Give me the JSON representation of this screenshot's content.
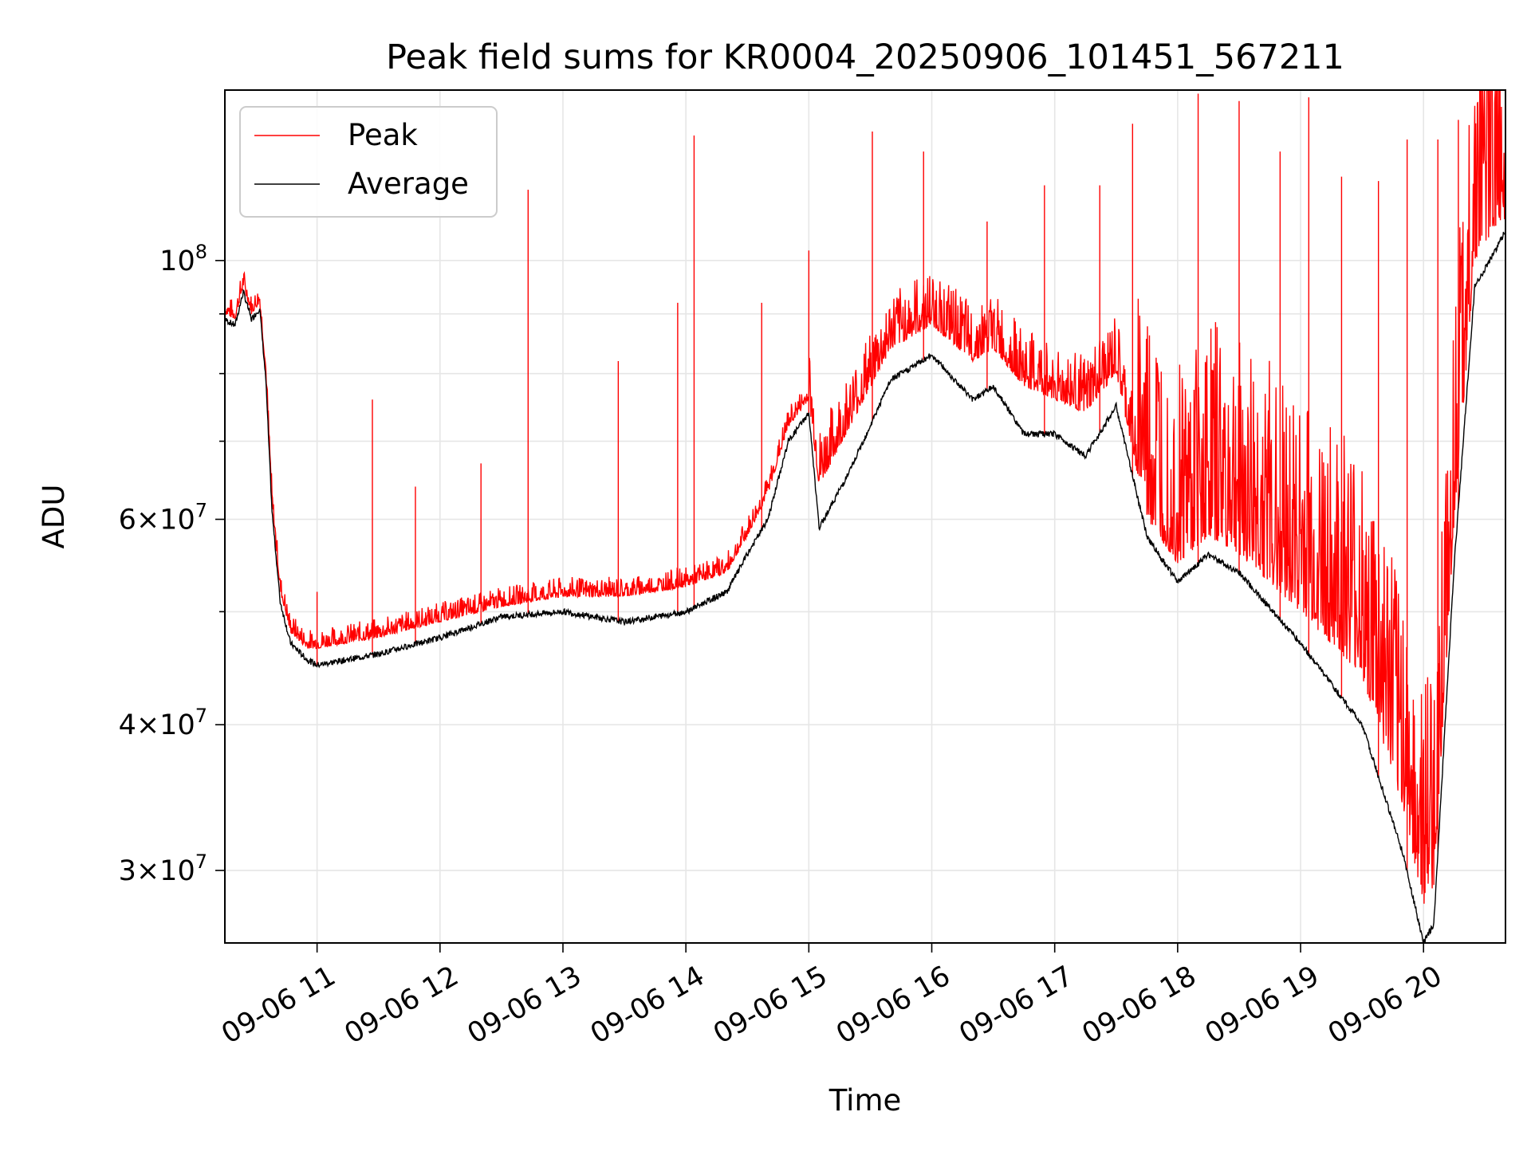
{
  "chart_data": {
    "type": "line",
    "title": "Peak field sums for KR0004_20250906_101451_567211",
    "xlabel": "Time",
    "ylabel": "ADU",
    "y_scale": "log",
    "ylim": [
      26000000,
      140000000
    ],
    "xlim": [
      "2025-09-06 10:15",
      "2025-09-06 20:40"
    ],
    "grid": true,
    "legend_position": "upper-left",
    "x_ticks": [
      {
        "value": "2025-09-06 11:00",
        "label": "09-06 11"
      },
      {
        "value": "2025-09-06 12:00",
        "label": "09-06 12"
      },
      {
        "value": "2025-09-06 13:00",
        "label": "09-06 13"
      },
      {
        "value": "2025-09-06 14:00",
        "label": "09-06 14"
      },
      {
        "value": "2025-09-06 15:00",
        "label": "09-06 15"
      },
      {
        "value": "2025-09-06 16:00",
        "label": "09-06 16"
      },
      {
        "value": "2025-09-06 17:00",
        "label": "09-06 17"
      },
      {
        "value": "2025-09-06 18:00",
        "label": "09-06 18"
      },
      {
        "value": "2025-09-06 19:00",
        "label": "09-06 19"
      },
      {
        "value": "2025-09-06 20:00",
        "label": "09-06 20"
      }
    ],
    "y_ticks": [
      {
        "value": 30000000,
        "mantissa": "3",
        "exponent": "7"
      },
      {
        "value": 40000000,
        "mantissa": "4",
        "exponent": "7"
      },
      {
        "value": 60000000,
        "mantissa": "6",
        "exponent": "7"
      },
      {
        "value": 100000000,
        "mantissa": "",
        "exponent": "8"
      }
    ],
    "y_minor_ticks": [
      50000000,
      70000000,
      80000000,
      90000000
    ],
    "series": [
      {
        "name": "Peak",
        "color": "#ff0000",
        "x": [
          "2025-09-06 10:15",
          "2025-09-06 10:20",
          "2025-09-06 10:24",
          "2025-09-06 10:28",
          "2025-09-06 10:32",
          "2025-09-06 10:35",
          "2025-09-06 10:38",
          "2025-09-06 10:42",
          "2025-09-06 10:47",
          "2025-09-06 10:55",
          "2025-09-06 11:00",
          "2025-09-06 11:30",
          "2025-09-06 12:00",
          "2025-09-06 12:30",
          "2025-09-06 13:00",
          "2025-09-06 13:30",
          "2025-09-06 14:00",
          "2025-09-06 14:20",
          "2025-09-06 14:30",
          "2025-09-06 14:40",
          "2025-09-06 14:50",
          "2025-09-06 15:00",
          "2025-09-06 15:05",
          "2025-09-06 15:20",
          "2025-09-06 15:40",
          "2025-09-06 16:00",
          "2025-09-06 16:20",
          "2025-09-06 16:30",
          "2025-09-06 16:45",
          "2025-09-06 17:00",
          "2025-09-06 17:15",
          "2025-09-06 17:30",
          "2025-09-06 17:45",
          "2025-09-06 18:00",
          "2025-09-06 18:15",
          "2025-09-06 18:30",
          "2025-09-06 19:00",
          "2025-09-06 19:30",
          "2025-09-06 19:50",
          "2025-09-06 20:00",
          "2025-09-06 20:05",
          "2025-09-06 20:15",
          "2025-09-06 20:25",
          "2025-09-06 20:35",
          "2025-09-06 20:40"
        ],
        "y": [
          90000000,
          89000000,
          95000000,
          90000000,
          92000000,
          80000000,
          62000000,
          52000000,
          48000000,
          46500000,
          46500000,
          47500000,
          49000000,
          50500000,
          51500000,
          51500000,
          52500000,
          54000000,
          58000000,
          63000000,
          72000000,
          76000000,
          64000000,
          72000000,
          84000000,
          88000000,
          82000000,
          84000000,
          78000000,
          76000000,
          74000000,
          80000000,
          60000000,
          55000000,
          58000000,
          56000000,
          50000000,
          44000000,
          34000000,
          28000000,
          29000000,
          60000000,
          100000000,
          107000000,
          108000000
        ]
      },
      {
        "name": "Average",
        "color": "#000000",
        "x": [
          "2025-09-06 10:15",
          "2025-09-06 10:20",
          "2025-09-06 10:24",
          "2025-09-06 10:28",
          "2025-09-06 10:32",
          "2025-09-06 10:35",
          "2025-09-06 10:38",
          "2025-09-06 10:42",
          "2025-09-06 10:47",
          "2025-09-06 10:55",
          "2025-09-06 11:00",
          "2025-09-06 11:30",
          "2025-09-06 12:00",
          "2025-09-06 12:30",
          "2025-09-06 13:00",
          "2025-09-06 13:30",
          "2025-09-06 14:00",
          "2025-09-06 14:20",
          "2025-09-06 14:30",
          "2025-09-06 14:40",
          "2025-09-06 14:50",
          "2025-09-06 15:00",
          "2025-09-06 15:05",
          "2025-09-06 15:20",
          "2025-09-06 15:40",
          "2025-09-06 16:00",
          "2025-09-06 16:20",
          "2025-09-06 16:30",
          "2025-09-06 16:45",
          "2025-09-06 17:00",
          "2025-09-06 17:15",
          "2025-09-06 17:30",
          "2025-09-06 17:45",
          "2025-09-06 18:00",
          "2025-09-06 18:15",
          "2025-09-06 18:30",
          "2025-09-06 19:00",
          "2025-09-06 19:30",
          "2025-09-06 19:50",
          "2025-09-06 20:00",
          "2025-09-06 20:05",
          "2025-09-06 20:15",
          "2025-09-06 20:25",
          "2025-09-06 20:35",
          "2025-09-06 20:40"
        ],
        "y": [
          89000000,
          88000000,
          94000000,
          89000000,
          91000000,
          79000000,
          61000000,
          51000000,
          47000000,
          45500000,
          45000000,
          46000000,
          47500000,
          49500000,
          50000000,
          49000000,
          50000000,
          52000000,
          56000000,
          60000000,
          70000000,
          74000000,
          59000000,
          66000000,
          79000000,
          83000000,
          76000000,
          78000000,
          71000000,
          71000000,
          68000000,
          75000000,
          58000000,
          53000000,
          56000000,
          54000000,
          47000000,
          40000000,
          31000000,
          26000000,
          27000000,
          55000000,
          95000000,
          102000000,
          106000000
        ]
      }
    ],
    "peak_spikes": [
      {
        "x": "2025-09-06 11:00",
        "y": 52000000
      },
      {
        "x": "2025-09-06 11:27",
        "y": 76000000
      },
      {
        "x": "2025-09-06 11:48",
        "y": 64000000
      },
      {
        "x": "2025-09-06 12:20",
        "y": 67000000
      },
      {
        "x": "2025-09-06 12:43",
        "y": 115000000
      },
      {
        "x": "2025-09-06 13:27",
        "y": 82000000
      },
      {
        "x": "2025-09-06 13:56",
        "y": 92000000
      },
      {
        "x": "2025-09-06 14:04",
        "y": 128000000
      },
      {
        "x": "2025-09-06 14:37",
        "y": 92000000
      },
      {
        "x": "2025-09-06 15:00",
        "y": 102000000
      },
      {
        "x": "2025-09-06 15:31",
        "y": 129000000
      },
      {
        "x": "2025-09-06 15:56",
        "y": 124000000
      },
      {
        "x": "2025-09-06 16:27",
        "y": 108000000
      },
      {
        "x": "2025-09-06 16:55",
        "y": 116000000
      },
      {
        "x": "2025-09-06 17:22",
        "y": 116000000
      },
      {
        "x": "2025-09-06 17:38",
        "y": 131000000
      },
      {
        "x": "2025-09-06 18:10",
        "y": 139000000
      },
      {
        "x": "2025-09-06 18:30",
        "y": 137000000
      },
      {
        "x": "2025-09-06 18:50",
        "y": 124000000
      },
      {
        "x": "2025-09-06 19:04",
        "y": 138000000
      },
      {
        "x": "2025-09-06 19:20",
        "y": 118000000
      },
      {
        "x": "2025-09-06 19:38",
        "y": 117000000
      },
      {
        "x": "2025-09-06 19:52",
        "y": 127000000
      },
      {
        "x": "2025-09-06 20:07",
        "y": 127000000
      },
      {
        "x": "2025-09-06 20:17",
        "y": 132000000
      }
    ]
  }
}
